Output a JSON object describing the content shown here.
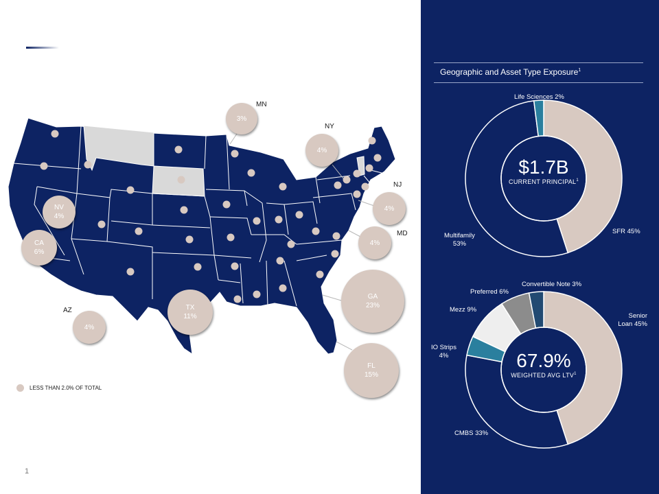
{
  "page": {
    "number": "1"
  },
  "map": {
    "legend_text": "LESS THAN 2.0% OF TOTAL",
    "state_labels": {
      "mn": "MN",
      "ny": "NY",
      "nj": "NJ",
      "md": "MD",
      "az": "AZ"
    },
    "bubbles": {
      "mn": {
        "state": "",
        "pct": "3%"
      },
      "ny": {
        "state": "",
        "pct": "4%"
      },
      "nj": {
        "state": "",
        "pct": "4%"
      },
      "md": {
        "state": "",
        "pct": "4%"
      },
      "nv": {
        "state": "NV",
        "pct": "4%"
      },
      "ca": {
        "state": "CA",
        "pct": "6%"
      },
      "az": {
        "state": "",
        "pct": "4%"
      },
      "tx": {
        "state": "TX",
        "pct": "11%"
      },
      "ga": {
        "state": "GA",
        "pct": "23%"
      },
      "fl": {
        "state": "FL",
        "pct": "15%"
      }
    }
  },
  "panel": {
    "title": "Geographic and Asset Type Exposure",
    "title_note": "1",
    "donut1": {
      "value": "$1.7B",
      "caption": "CURRENT  PRINCIPAL",
      "caption_note": "1",
      "labels": {
        "life_sciences": "Life Sciences 2%",
        "multifamily": "Multifamily",
        "multifamily_pct": "53%",
        "sfr": "SFR 45%"
      }
    },
    "donut2": {
      "value": "67.9%",
      "caption": "WEIGHTED  AVG LTV",
      "caption_note": "1",
      "labels": {
        "convertible": "Convertible Note 3%",
        "preferred": "Preferred 6%",
        "mezz": "Mezz 9%",
        "io": "IO Strips",
        "io_pct": "4%",
        "cmbs": "CMBS 33%",
        "senior": "Senior",
        "senior_pct": "Loan 45%"
      }
    }
  },
  "colors": {
    "navy": "#0d2363",
    "beige": "#d8c9c1",
    "teal": "#2a7f9e",
    "grey": "#8c8c8c",
    "light": "#eeeeee",
    "steel": "#224a72",
    "empty": "#d9d9d9"
  },
  "chart_data": [
    {
      "type": "pie",
      "title": "Geographic and Asset Type Exposure",
      "center_label": "$1.7B CURRENT PRINCIPAL",
      "categories": [
        "SFR",
        "Multifamily",
        "Life Sciences"
      ],
      "values": [
        45,
        53,
        2
      ],
      "colors": [
        "#d8c9c1",
        "#0d2363",
        "#2a7f9e"
      ]
    },
    {
      "type": "pie",
      "center_label": "67.9% WEIGHTED AVG LTV",
      "categories": [
        "Senior Loan",
        "CMBS",
        "IO Strips",
        "Mezz",
        "Preferred",
        "Convertible Note"
      ],
      "values": [
        45,
        33,
        4,
        9,
        6,
        3
      ],
      "colors": [
        "#d8c9c1",
        "#0d2363",
        "#2a7f9e",
        "#eeeeee",
        "#8c8c8c",
        "#224a72"
      ]
    },
    {
      "type": "table",
      "title": "",
      "categories": [
        "MN",
        "NY",
        "NJ",
        "MD",
        "NV",
        "CA",
        "AZ",
        "TX",
        "GA",
        "FL"
      ],
      "values": [
        3,
        4,
        4,
        4,
        4,
        6,
        4,
        11,
        23,
        15
      ]
    }
  ]
}
